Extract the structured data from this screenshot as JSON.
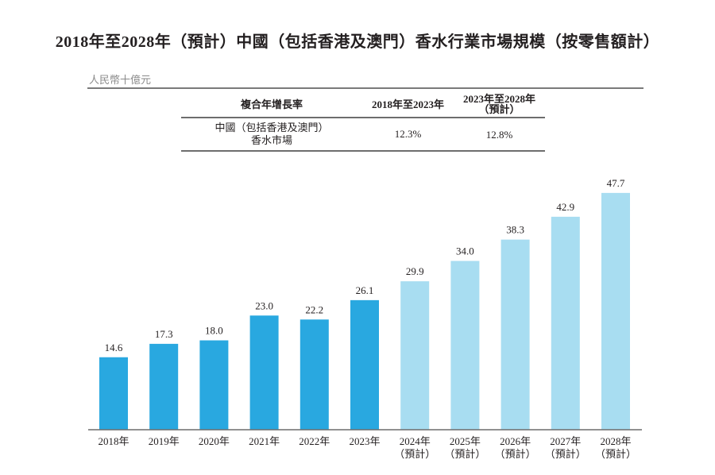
{
  "title": "2018年至2028年（預計）中國（包括香港及澳門）香水行業市場規模（按零售額計）",
  "unit": "人民幣十億元",
  "cagr_table": {
    "header": [
      "複合年增長率",
      "2018年至2023年",
      "2023年至2028年",
      "（預計）"
    ],
    "row": {
      "label_line1": "中國（包括香港及澳門）",
      "label_line2": "香水市場",
      "cagr_2018_2023": "12.3%",
      "cagr_2023_2028": "12.8%"
    }
  },
  "colors": {
    "historical": "#29a8e0",
    "forecast": "#a8ddf1",
    "axis": "#6d6d6d"
  },
  "chart_data": {
    "type": "bar",
    "title": "2018年至2028年（預計）中國（包括香港及澳門）香水行業市場規模（按零售額計）",
    "ylabel": "人民幣十億元",
    "xlabel": "",
    "categories": [
      "2018年",
      "2019年",
      "2020年",
      "2021年",
      "2022年",
      "2023年",
      "2024年",
      "2025年",
      "2026年",
      "2027年",
      "2028年"
    ],
    "category_sublabels": [
      "",
      "",
      "",
      "",
      "",
      "",
      "（預計）",
      "（預計）",
      "（預計）",
      "（預計）",
      "（預計）"
    ],
    "values": [
      14.6,
      17.3,
      18.0,
      23.0,
      22.2,
      26.1,
      29.9,
      34.0,
      38.3,
      42.9,
      47.7
    ],
    "value_labels": [
      "14.6",
      "17.3",
      "18.0",
      "23.0",
      "22.2",
      "26.1",
      "29.9",
      "34.0",
      "38.3",
      "42.9",
      "47.7"
    ],
    "forecast": [
      false,
      false,
      false,
      false,
      false,
      false,
      true,
      true,
      true,
      true,
      true
    ],
    "ylim": [
      0,
      50
    ],
    "grid": false,
    "legend": "none"
  }
}
